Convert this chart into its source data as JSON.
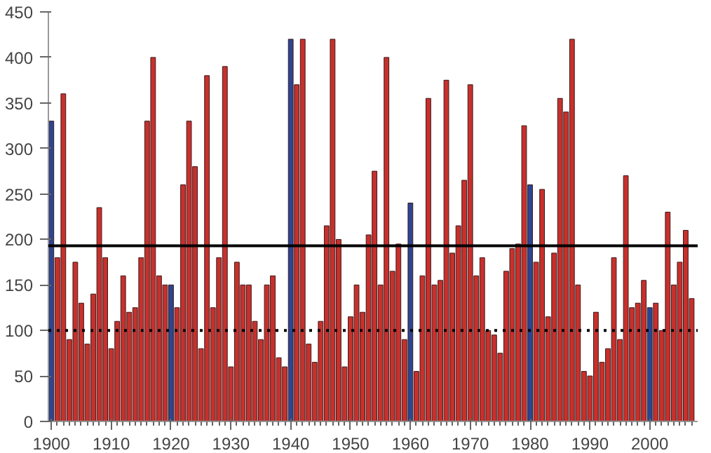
{
  "chart_data": {
    "type": "bar",
    "x": [
      1900,
      1901,
      1902,
      1903,
      1904,
      1905,
      1906,
      1907,
      1908,
      1909,
      1910,
      1911,
      1912,
      1913,
      1914,
      1915,
      1916,
      1917,
      1918,
      1919,
      1920,
      1921,
      1922,
      1923,
      1924,
      1925,
      1926,
      1927,
      1928,
      1929,
      1930,
      1931,
      1932,
      1933,
      1934,
      1935,
      1936,
      1937,
      1938,
      1939,
      1940,
      1941,
      1942,
      1943,
      1944,
      1945,
      1946,
      1947,
      1948,
      1949,
      1950,
      1951,
      1952,
      1953,
      1954,
      1955,
      1956,
      1957,
      1958,
      1959,
      1960,
      1961,
      1962,
      1963,
      1964,
      1965,
      1966,
      1967,
      1968,
      1969,
      1970,
      1971,
      1972,
      1973,
      1974,
      1975,
      1976,
      1977,
      1978,
      1979,
      1980,
      1981,
      1982,
      1983,
      1984,
      1985,
      1986,
      1987,
      1988,
      1989,
      1990,
      1991,
      1992,
      1993,
      1994,
      1995,
      1996,
      1997,
      1998,
      1999,
      2000,
      2001,
      2002,
      2003,
      2004,
      2005,
      2006,
      2007
    ],
    "values": [
      330,
      180,
      360,
      90,
      175,
      130,
      85,
      140,
      235,
      180,
      80,
      110,
      160,
      120,
      125,
      180,
      330,
      400,
      160,
      150,
      150,
      125,
      260,
      330,
      280,
      80,
      380,
      125,
      180,
      390,
      60,
      175,
      150,
      150,
      110,
      90,
      150,
      160,
      70,
      60,
      420,
      370,
      420,
      85,
      65,
      110,
      215,
      420,
      200,
      60,
      115,
      150,
      120,
      205,
      275,
      150,
      400,
      165,
      195,
      90,
      240,
      55,
      160,
      355,
      150,
      155,
      375,
      185,
      215,
      265,
      370,
      160,
      180,
      100,
      95,
      75,
      165,
      190,
      195,
      325,
      260,
      175,
      255,
      115,
      185,
      355,
      340,
      420,
      150,
      55,
      50,
      120,
      65,
      80,
      180,
      90,
      270,
      125,
      130,
      155,
      125,
      130,
      100,
      230,
      150,
      175,
      210,
      135
    ],
    "colors": [
      "#2d4592",
      "#c8302c",
      "#c8302c",
      "#c8302c",
      "#c8302c",
      "#c8302c",
      "#c8302c",
      "#c8302c",
      "#c8302c",
      "#c8302c",
      "#c8302c",
      "#c8302c",
      "#c8302c",
      "#c8302c",
      "#c8302c",
      "#c8302c",
      "#c8302c",
      "#c8302c",
      "#c8302c",
      "#c8302c",
      "#2d4592",
      "#c8302c",
      "#c8302c",
      "#c8302c",
      "#c8302c",
      "#c8302c",
      "#c8302c",
      "#c8302c",
      "#c8302c",
      "#c8302c",
      "#c8302c",
      "#c8302c",
      "#c8302c",
      "#c8302c",
      "#c8302c",
      "#c8302c",
      "#c8302c",
      "#c8302c",
      "#c8302c",
      "#c8302c",
      "#2d4592",
      "#c8302c",
      "#c8302c",
      "#c8302c",
      "#c8302c",
      "#c8302c",
      "#c8302c",
      "#c8302c",
      "#c8302c",
      "#c8302c",
      "#c8302c",
      "#c8302c",
      "#c8302c",
      "#c8302c",
      "#c8302c",
      "#c8302c",
      "#c8302c",
      "#c8302c",
      "#c8302c",
      "#c8302c",
      "#2d4592",
      "#c8302c",
      "#c8302c",
      "#c8302c",
      "#c8302c",
      "#c8302c",
      "#c8302c",
      "#c8302c",
      "#c8302c",
      "#c8302c",
      "#c8302c",
      "#c8302c",
      "#c8302c",
      "#c8302c",
      "#c8302c",
      "#c8302c",
      "#c8302c",
      "#c8302c",
      "#c8302c",
      "#c8302c",
      "#2d4592",
      "#c8302c",
      "#c8302c",
      "#c8302c",
      "#c8302c",
      "#c8302c",
      "#c8302c",
      "#c8302c",
      "#c8302c",
      "#c8302c",
      "#c8302c",
      "#c8302c",
      "#c8302c",
      "#c8302c",
      "#c8302c",
      "#c8302c",
      "#c8302c",
      "#c8302c",
      "#c8302c",
      "#c8302c",
      "#2d4592",
      "#c8302c",
      "#c8302c",
      "#c8302c",
      "#c8302c",
      "#c8302c",
      "#c8302c",
      "#c8302c"
    ],
    "xlim": [
      1899.5,
      2008
    ],
    "xticks": [
      1900,
      1910,
      1920,
      1930,
      1940,
      1950,
      1960,
      1970,
      1980,
      1990,
      2000
    ],
    "ylim": [
      0,
      450
    ],
    "yticks": [
      0,
      50,
      100,
      150,
      200,
      250,
      300,
      350,
      400,
      450
    ],
    "ref_lines": [
      {
        "axis": "y",
        "value": 193,
        "color": "#000000",
        "line_style": "solid"
      },
      {
        "axis": "y",
        "value": 100,
        "color": "#000000",
        "line_style": "dotted"
      }
    ],
    "grid": false
  }
}
